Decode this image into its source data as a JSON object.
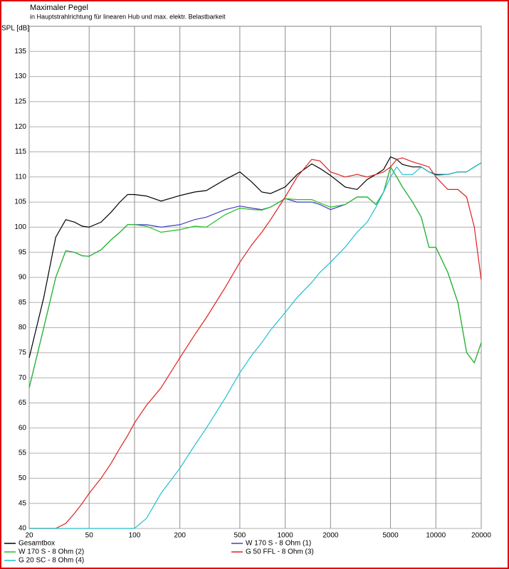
{
  "chart_data": {
    "type": "line",
    "title": "Maximaler Pegel",
    "subtitle": "in Hauptstrahlrichtung für linearen Hub und max. elektr. Belastbarkeit",
    "ylabel": "SPL [dB]",
    "xscale": "log",
    "grid": true,
    "xlim": [
      20,
      20000
    ],
    "ylim": [
      40,
      140
    ],
    "xticks": [
      20,
      50,
      100,
      200,
      500,
      1000,
      2000,
      5000,
      10000,
      20000
    ],
    "yticks": [
      40,
      45,
      50,
      55,
      60,
      65,
      70,
      75,
      80,
      85,
      90,
      95,
      100,
      105,
      110,
      115,
      120,
      125,
      130,
      135
    ],
    "x": [
      20,
      25,
      30,
      35,
      40,
      45,
      50,
      60,
      70,
      80,
      90,
      100,
      120,
      150,
      200,
      250,
      300,
      400,
      500,
      600,
      700,
      800,
      1000,
      1200,
      1500,
      1700,
      2000,
      2500,
      3000,
      3500,
      4000,
      4500,
      5000,
      5500,
      6000,
      7000,
      8000,
      9000,
      10000,
      12000,
      14000,
      16000,
      18000,
      20000
    ],
    "series": [
      {
        "name": "Gesamtbox",
        "color": "#000000",
        "values": [
          74,
          86,
          98,
          101.5,
          101,
          100.2,
          100,
          101,
          103,
          105,
          106.5,
          106.5,
          106.2,
          105.2,
          106.3,
          107,
          107.3,
          109.5,
          111,
          109,
          107,
          106.7,
          108,
          110.5,
          112.6,
          111.7,
          110.3,
          108,
          107.5,
          109.5,
          110.5,
          111.5,
          114,
          113.5,
          112.5,
          112,
          112,
          111,
          110.5,
          110.5,
          111,
          111,
          112,
          112.8
        ]
      },
      {
        "name": "W 170 S - 8 Ohm (1)",
        "color": "#4040c0",
        "values": [
          68,
          80,
          90,
          95.3,
          95,
          94.3,
          94.2,
          95.5,
          97.5,
          99,
          100.5,
          100.5,
          100.5,
          100,
          100.5,
          101.5,
          102,
          103.5,
          104.2,
          103.8,
          103.5,
          104,
          105.7,
          105,
          105,
          104.5,
          103.5,
          104.5,
          106,
          106,
          104.5,
          107,
          112,
          110,
          108,
          105,
          102,
          96,
          96,
          91,
          85,
          75,
          73,
          77
        ]
      },
      {
        "name": "W 170 S - 8 Ohm (2)",
        "color": "#20c020",
        "values": [
          68,
          80,
          90,
          95.3,
          95,
          94.3,
          94.2,
          95.5,
          97.5,
          99,
          100.5,
          100.5,
          100.2,
          99,
          99.5,
          100.2,
          100,
          102.5,
          103.8,
          103.5,
          103.4,
          104,
          105.7,
          105.5,
          105.5,
          104.8,
          104,
          104.5,
          106,
          106,
          104.5,
          107,
          112,
          110,
          108,
          105,
          102,
          96,
          96,
          91,
          85,
          75,
          73,
          77
        ]
      },
      {
        "name": "G 50 FFL - 8 Ohm (3)",
        "color": "#e02020",
        "values": [
          40,
          40,
          40,
          41,
          43,
          45,
          47,
          50,
          53,
          56,
          58.5,
          61,
          64.5,
          68,
          74,
          78.5,
          82,
          88,
          93,
          96.5,
          99,
          101.5,
          106,
          110,
          113.5,
          113.2,
          111,
          110,
          110.5,
          110,
          110.5,
          111,
          112,
          113.5,
          113.8,
          113,
          112.5,
          112,
          110,
          107.5,
          107.5,
          106,
          100,
          89.5
        ]
      },
      {
        "name": "G 20 SC - 8 Ohm (4)",
        "color": "#20c0d0",
        "values": [
          40,
          40,
          40,
          40,
          40,
          40,
          40,
          40,
          40,
          40,
          40,
          40,
          42,
          47,
          52,
          56.5,
          60,
          66,
          71,
          74.5,
          77,
          79.5,
          83,
          86,
          89,
          91,
          93,
          96,
          99,
          101,
          104,
          107,
          110,
          112,
          110.5,
          110.5,
          112,
          111,
          110.3,
          110.5,
          111,
          111,
          112,
          112.8
        ]
      }
    ]
  }
}
